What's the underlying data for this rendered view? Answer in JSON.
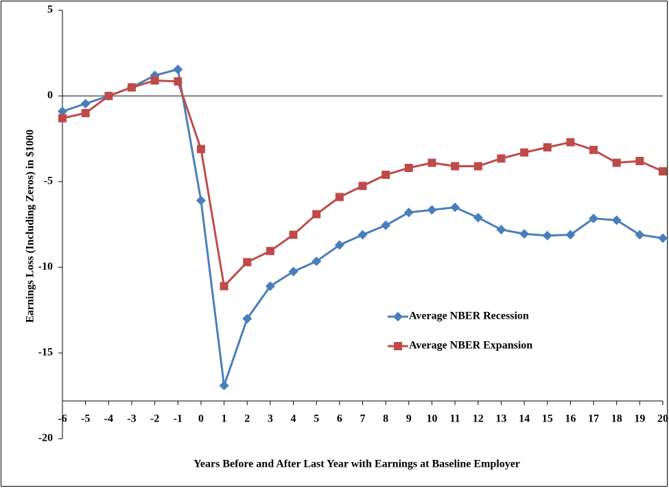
{
  "chart_data": {
    "type": "line",
    "x_label": "Years Before and After Last Year with Earnings at Baseline Employer",
    "y_label": "Earnings Loss (Including Zeros) in $1000",
    "x": [
      -6,
      -5,
      -4,
      -3,
      -2,
      -1,
      0,
      1,
      2,
      3,
      4,
      5,
      6,
      7,
      8,
      9,
      10,
      11,
      12,
      13,
      14,
      15,
      16,
      17,
      18,
      19,
      20
    ],
    "xlim": [
      -6,
      20
    ],
    "xticks": [
      -6,
      -5,
      -4,
      -3,
      -2,
      -1,
      0,
      1,
      2,
      3,
      4,
      5,
      6,
      7,
      8,
      9,
      10,
      11,
      12,
      13,
      14,
      15,
      16,
      17,
      18,
      19,
      20
    ],
    "ylim": [
      -20,
      5
    ],
    "yticks": [
      -20,
      -15,
      -10,
      -5,
      0,
      5
    ],
    "legend_position": "center-right",
    "series": [
      {
        "name": "Average NBER Recession",
        "color": "#4a7ebb",
        "marker": "diamond",
        "values": [
          -0.9,
          -0.45,
          0,
          0.5,
          1.2,
          1.55,
          -6.1,
          -16.9,
          -13.0,
          -11.1,
          -10.25,
          -9.65,
          -8.7,
          -8.1,
          -7.55,
          -6.8,
          -6.65,
          -6.5,
          -7.1,
          -7.8,
          -8.05,
          -8.15,
          -8.1,
          -7.15,
          -7.25,
          -8.1,
          -8.3
        ]
      },
      {
        "name": "Average NBER Expansion",
        "color": "#be4b48",
        "marker": "square",
        "values": [
          -1.3,
          -1.0,
          0,
          0.5,
          0.9,
          0.85,
          -3.1,
          -11.1,
          -9.7,
          -9.05,
          -8.1,
          -6.9,
          -5.9,
          -5.25,
          -4.6,
          -4.2,
          -3.9,
          -4.1,
          -4.1,
          -3.65,
          -3.3,
          -3.0,
          -2.7,
          -3.15,
          -3.9,
          -3.8,
          -4.4
        ]
      }
    ]
  }
}
